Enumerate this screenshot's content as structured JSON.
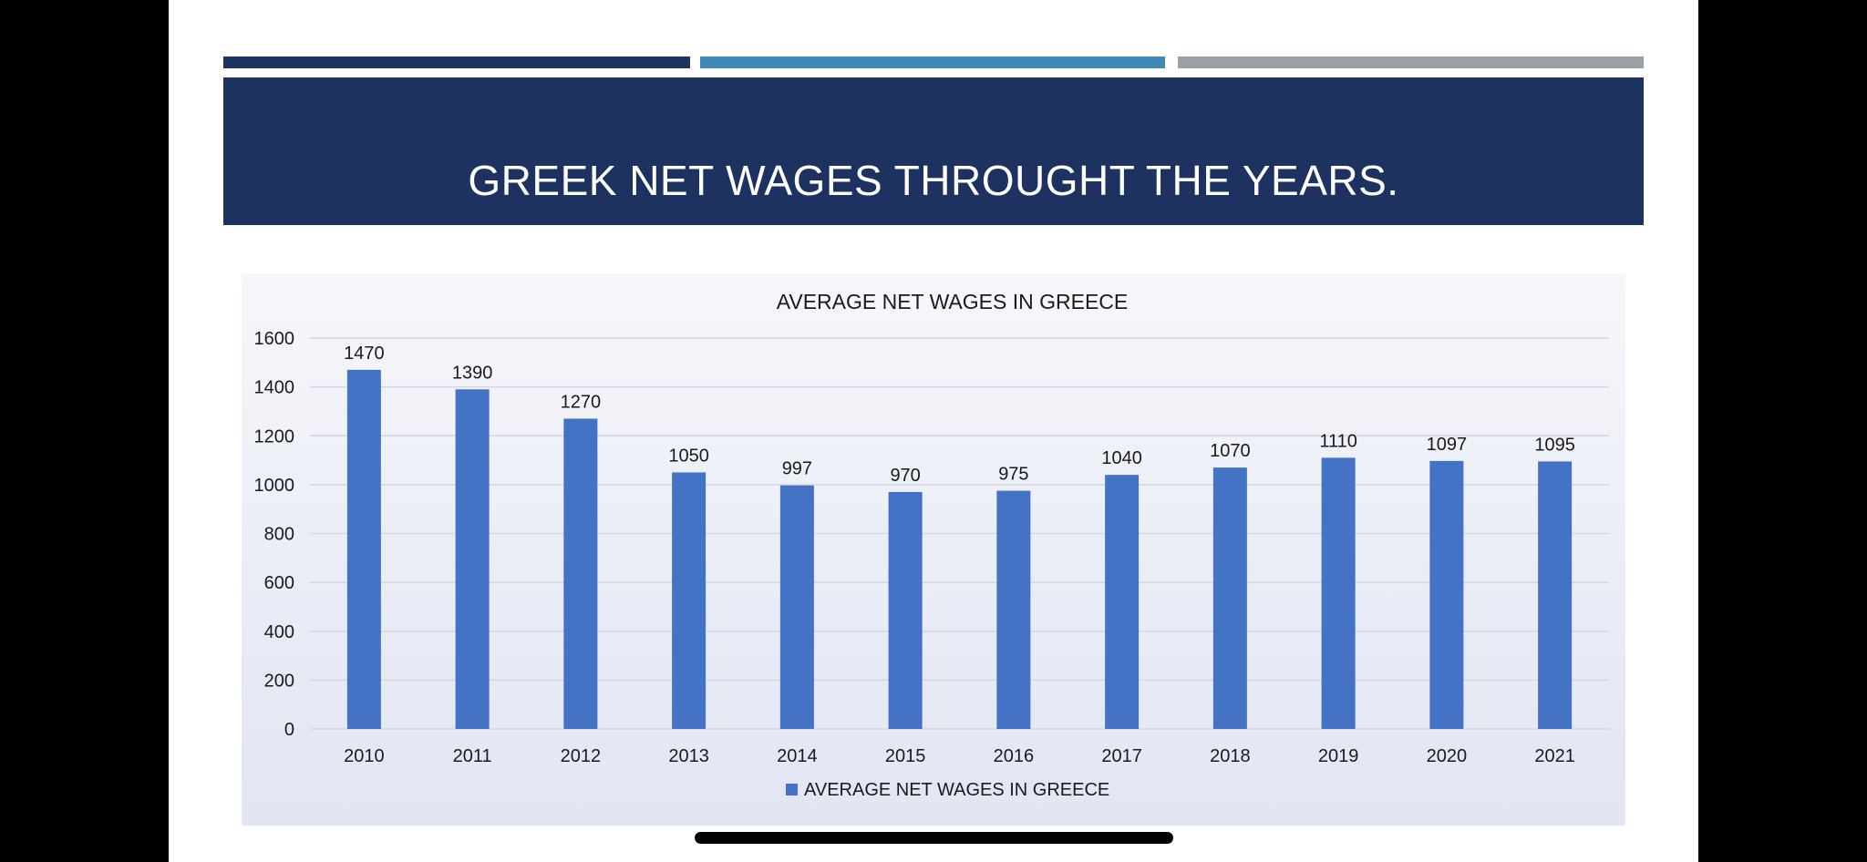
{
  "slide": {
    "title": "GREEK NET WAGES THROUGHT THE YEARS.",
    "accent_colors": [
      "#1e3262",
      "#3f8ab5",
      "#9aa0a8"
    ],
    "banner_color": "#1e3262"
  },
  "chart_data": {
    "type": "bar",
    "title": "AVERAGE NET WAGES IN GREECE",
    "categories": [
      "2010",
      "2011",
      "2012",
      "2013",
      "2014",
      "2015",
      "2016",
      "2017",
      "2018",
      "2019",
      "2020",
      "2021"
    ],
    "series": [
      {
        "name": "AVERAGE NET WAGES IN GREECE",
        "values": [
          1470,
          1390,
          1270,
          1050,
          997,
          970,
          975,
          1040,
          1070,
          1110,
          1097,
          1095
        ],
        "color": "#4472c4"
      }
    ],
    "ylim": [
      0,
      1600
    ],
    "yticks": [
      0,
      200,
      400,
      600,
      800,
      1000,
      1200,
      1400,
      1600
    ],
    "grid": true,
    "data_labels": true,
    "legend_position": "bottom"
  }
}
